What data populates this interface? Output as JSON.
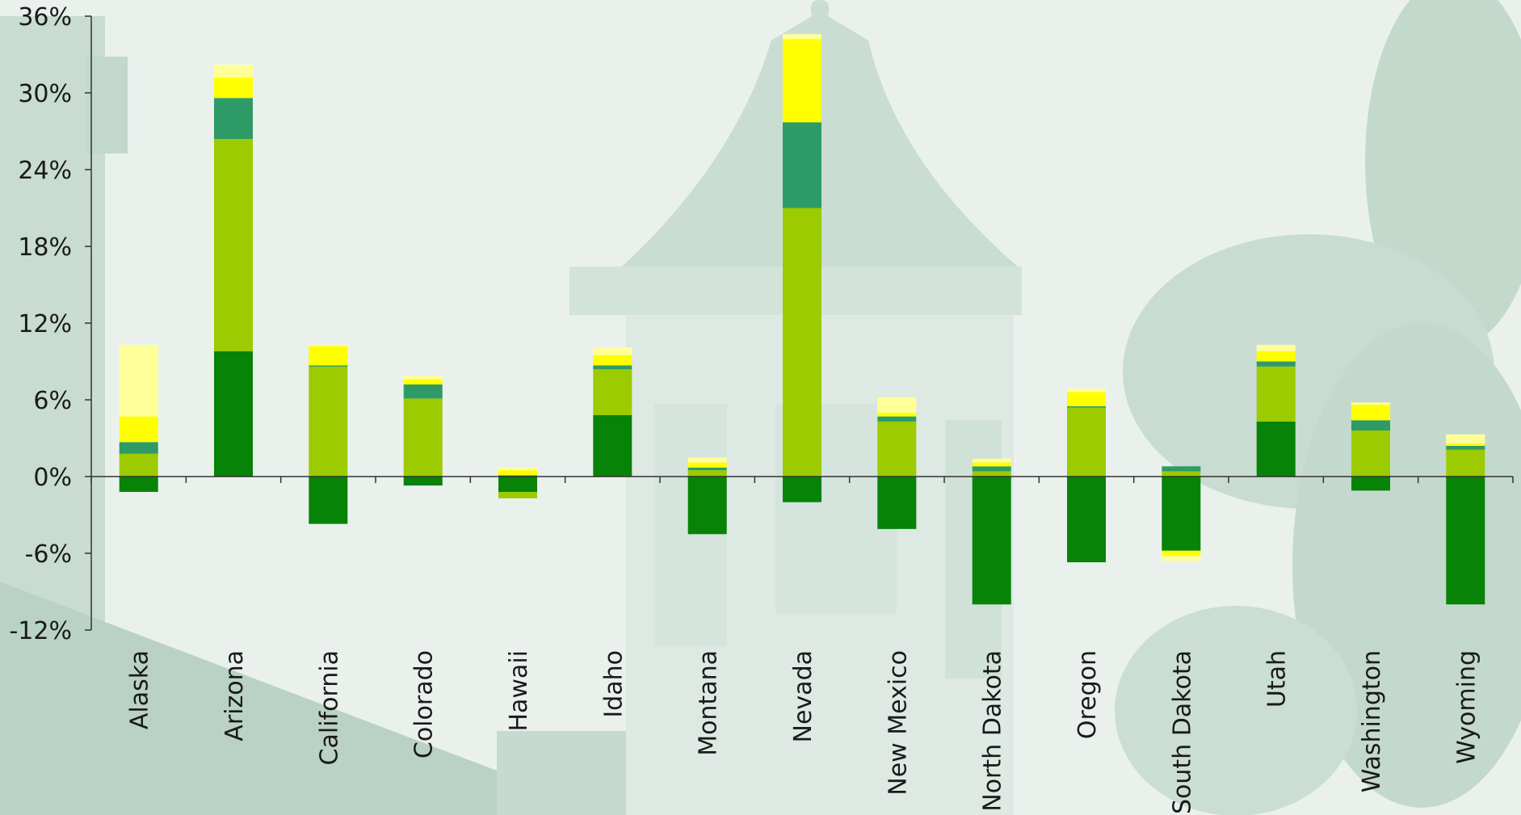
{
  "chart_data": {
    "type": "bar",
    "stacked": true,
    "title": "",
    "xlabel": "",
    "ylabel": "",
    "ylim": [
      -12,
      36
    ],
    "y_ticks": [
      "36%",
      "30%",
      "24%",
      "18%",
      "12%",
      "6%",
      "0%",
      "-6%",
      "-12%"
    ],
    "y_tick_values": [
      36,
      30,
      24,
      18,
      12,
      6,
      0,
      -6,
      -12
    ],
    "grid": false,
    "legend": "none",
    "categories": [
      "Alaska",
      "Arizona",
      "California",
      "Colorado",
      "Hawaii",
      "Idaho",
      "Montana",
      "Nevada",
      "New Mexico",
      "North Dakota",
      "Oregon",
      "South Dakota",
      "Utah",
      "Washington",
      "Wyoming"
    ],
    "series": [
      {
        "color": "#078307",
        "values": [
          -1.2,
          9.8,
          -3.7,
          -0.7,
          -1.2,
          4.8,
          -4.5,
          -2.0,
          -4.1,
          -10.0,
          -6.7,
          -5.8,
          4.3,
          -1.1,
          -10.0
        ]
      },
      {
        "color": "#9bcb00",
        "values": [
          1.8,
          16.6,
          8.6,
          6.1,
          -0.5,
          3.6,
          0.5,
          21.0,
          4.3,
          0.4,
          5.4,
          0.4,
          4.3,
          3.6,
          2.1
        ]
      },
      {
        "color": "#2e9b66",
        "values": [
          0.9,
          3.2,
          0.1,
          1.1,
          0.1,
          0.3,
          0.2,
          6.7,
          0.4,
          0.4,
          0.1,
          0.4,
          0.4,
          0.8,
          0.3
        ]
      },
      {
        "color": "#ffff00",
        "values": [
          2.0,
          1.6,
          1.5,
          0.4,
          0.4,
          0.8,
          0.4,
          6.5,
          0.3,
          0.3,
          1.1,
          -0.4,
          0.8,
          1.2,
          0.2
        ]
      },
      {
        "color": "#ffff99",
        "values": [
          5.6,
          1.0,
          0.1,
          0.3,
          0.2,
          0.6,
          0.4,
          0.4,
          1.2,
          0.3,
          0.3,
          -0.4,
          0.5,
          0.2,
          0.7
        ]
      }
    ]
  }
}
